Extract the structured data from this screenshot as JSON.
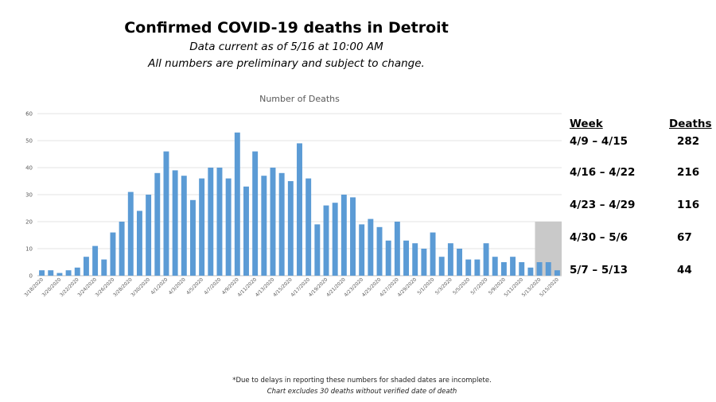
{
  "header": {
    "title": "Confirmed COVID-19 deaths in Detroit",
    "subtitle_1": "Data current as of 5/16 at 10:00 AM",
    "subtitle_2": "All numbers are preliminary and subject to change."
  },
  "chart_data": {
    "type": "bar",
    "title": "Number of Deaths",
    "xlabel": "",
    "ylabel": "",
    "ylim": [
      0,
      60
    ],
    "yticks": [
      0,
      10,
      20,
      30,
      40,
      50,
      60
    ],
    "grid": true,
    "bar_color": "#5b9bd5",
    "shade_color": "#c9c9c9",
    "shaded_categories": [
      "5/13/2020",
      "5/14/2020",
      "5/15/2020"
    ],
    "shaded_value": 20,
    "categories": [
      "3/18/2020",
      "3/19/2020",
      "3/20/2020",
      "3/21/2020",
      "3/22/2020",
      "3/23/2020",
      "3/24/2020",
      "3/25/2020",
      "3/26/2020",
      "3/27/2020",
      "3/28/2020",
      "3/29/2020",
      "3/30/2020",
      "3/31/2020",
      "4/1/2020",
      "4/2/2020",
      "4/3/2020",
      "4/4/2020",
      "4/5/2020",
      "4/6/2020",
      "4/7/2020",
      "4/8/2020",
      "4/9/2020",
      "4/10/2020",
      "4/11/2020",
      "4/12/2020",
      "4/13/2020",
      "4/14/2020",
      "4/15/2020",
      "4/16/2020",
      "4/17/2020",
      "4/18/2020",
      "4/19/2020",
      "4/20/2020",
      "4/21/2020",
      "4/22/2020",
      "4/23/2020",
      "4/24/2020",
      "4/25/2020",
      "4/26/2020",
      "4/27/2020",
      "4/28/2020",
      "4/29/2020",
      "4/30/2020",
      "5/1/2020",
      "5/2/2020",
      "5/3/2020",
      "5/4/2020",
      "5/5/2020",
      "5/6/2020",
      "5/7/2020",
      "5/8/2020",
      "5/9/2020",
      "5/10/2020",
      "5/11/2020",
      "5/12/2020",
      "5/13/2020",
      "5/14/2020",
      "5/15/2020"
    ],
    "tick_labels": [
      "3/18/2020",
      "3/20/2020",
      "3/22/2020",
      "3/24/2020",
      "3/26/2020",
      "3/28/2020",
      "3/30/2020",
      "4/1/2020",
      "4/3/2020",
      "4/5/2020",
      "4/7/2020",
      "4/9/2020",
      "4/11/2020",
      "4/13/2020",
      "4/15/2020",
      "4/17/2020",
      "4/19/2020",
      "4/21/2020",
      "4/23/2020",
      "4/25/2020",
      "4/27/2020",
      "4/29/2020",
      "5/1/2020",
      "5/3/2020",
      "5/5/2020",
      "5/7/2020",
      "5/9/2020",
      "5/11/2020",
      "5/13/2020",
      "5/15/2020"
    ],
    "values": [
      2,
      2,
      1,
      2,
      3,
      7,
      11,
      6,
      16,
      20,
      31,
      24,
      30,
      38,
      46,
      39,
      37,
      28,
      36,
      40,
      40,
      36,
      53,
      33,
      46,
      37,
      40,
      38,
      35,
      49,
      36,
      19,
      26,
      27,
      30,
      29,
      19,
      21,
      18,
      13,
      20,
      13,
      12,
      10,
      16,
      7,
      12,
      10,
      6,
      6,
      12,
      7,
      5,
      7,
      5,
      3,
      5,
      5,
      2
    ]
  },
  "weekly_summary": {
    "header_week": "Week",
    "header_deaths": "Deaths",
    "rows": [
      {
        "week": "4/9 – 4/15",
        "deaths": "282"
      },
      {
        "week": "4/16 – 4/22",
        "deaths": "216"
      },
      {
        "week": "4/23 – 4/29",
        "deaths": "116"
      },
      {
        "week": "4/30 – 5/6",
        "deaths": "67"
      },
      {
        "week": "5/7 – 5/13",
        "deaths": "44"
      }
    ]
  },
  "footnotes": {
    "line1": "*Due to delays in reporting these numbers for shaded dates are incomplete.",
    "line2": "Chart excludes 30 deaths without verified date of death"
  }
}
